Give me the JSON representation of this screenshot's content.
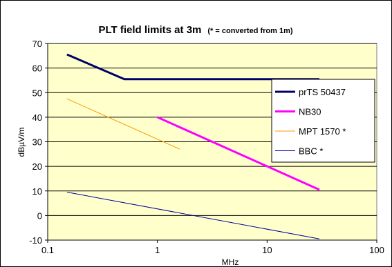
{
  "chart_data": {
    "type": "line",
    "title": "PLT field limits at 3m",
    "subtitle": "(* = converted from 1m)",
    "xlabel": "MHz",
    "ylabel": "dBµV/m",
    "xscale": "log",
    "xlim": [
      0.1,
      100
    ],
    "ylim": [
      -10,
      70
    ],
    "x_ticks": [
      "0.1",
      "1",
      "10",
      "100"
    ],
    "y_ticks": [
      "-10",
      "0",
      "10",
      "20",
      "30",
      "40",
      "50",
      "60",
      "70"
    ],
    "grid": "horizontal",
    "legend_position": "right",
    "plot_background": "#ffffcc",
    "series": [
      {
        "name": "prTS 50437",
        "color": "#000066",
        "x": [
          0.15,
          0.5,
          30
        ],
        "y": [
          65.5,
          55.5,
          55.5
        ]
      },
      {
        "name": "NB30",
        "color": "#ff00ff",
        "x": [
          1,
          30
        ],
        "y": [
          40,
          10.5
        ]
      },
      {
        "name": "MPT 1570 *",
        "color": "#ff9900",
        "x": [
          0.15,
          1.6
        ],
        "y": [
          47.5,
          27
        ]
      },
      {
        "name": "BBC *",
        "color": "#000099",
        "x": [
          0.15,
          30
        ],
        "y": [
          9.5,
          -9.5
        ]
      }
    ]
  }
}
